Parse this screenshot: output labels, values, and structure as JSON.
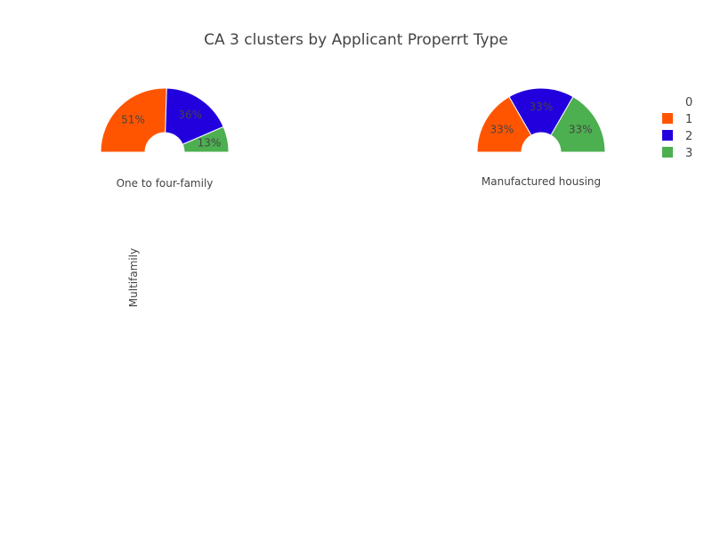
{
  "chart_data": {
    "type": "pie",
    "title": "CA 3 clusters by Applicant Properrt Type",
    "legend": {
      "placement": "top-right",
      "entries": [
        {
          "label": "0",
          "color": "#ffffff"
        },
        {
          "label": "1",
          "color": "#ff5500"
        },
        {
          "label": "2",
          "color": "#2200dd"
        },
        {
          "label": "3",
          "color": "#4caf50"
        }
      ]
    },
    "pies": [
      {
        "name": "One to four-family",
        "slices": [
          {
            "cluster": "1",
            "percent": 51,
            "label": "51%",
            "color": "#ff5500"
          },
          {
            "cluster": "2",
            "percent": 36,
            "label": "36%",
            "color": "#2200dd"
          },
          {
            "cluster": "3",
            "percent": 13,
            "label": "13%",
            "color": "#4caf50"
          }
        ]
      },
      {
        "name": "Manufactured housing",
        "slices": [
          {
            "cluster": "1",
            "percent": 33,
            "label": "33%",
            "color": "#ff5500"
          },
          {
            "cluster": "2",
            "percent": 33,
            "label": "33%",
            "color": "#2200dd"
          },
          {
            "cluster": "3",
            "percent": 33,
            "label": "33%",
            "color": "#4caf50"
          }
        ]
      },
      {
        "name": "Multifamily",
        "slices": []
      }
    ]
  }
}
